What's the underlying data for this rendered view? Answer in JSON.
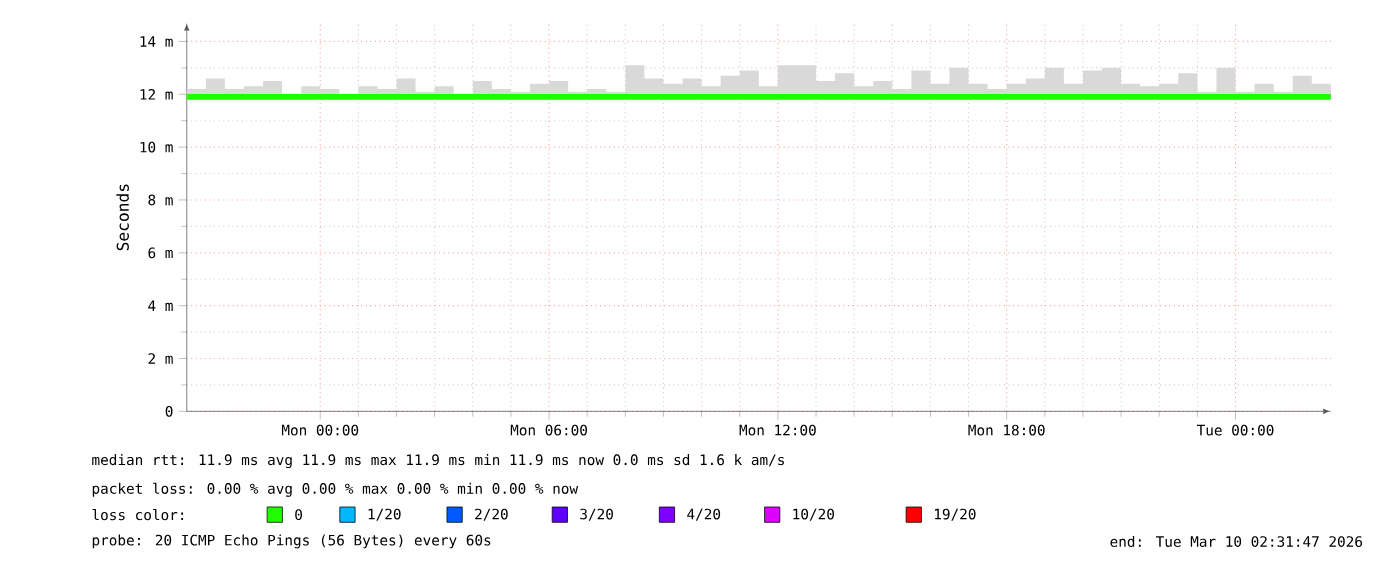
{
  "chart_data": {
    "type": "line",
    "ylabel": "Seconds",
    "xlim": [
      "2026-03-08T20:30",
      "2026-03-10T02:30"
    ],
    "ylim": [
      0,
      14.7
    ],
    "xticks": [
      {
        "value": "2026-03-09T00:00",
        "label": "Mon 00:00"
      },
      {
        "value": "2026-03-09T06:00",
        "label": "Mon 06:00"
      },
      {
        "value": "2026-03-09T12:00",
        "label": "Mon 12:00"
      },
      {
        "value": "2026-03-09T18:00",
        "label": "Mon 18:00"
      },
      {
        "value": "2026-03-10T00:00",
        "label": "Tue 00:00"
      }
    ],
    "yticks": [
      0,
      {
        "value": 2,
        "label": "2 m"
      },
      {
        "value": 4,
        "label": "4 m"
      },
      {
        "value": 6,
        "label": "6 m"
      },
      {
        "value": 8,
        "label": "8 m"
      },
      {
        "value": 10,
        "label": "10 m"
      },
      {
        "value": 12,
        "label": "12 m"
      },
      {
        "value": 14,
        "label": "14 m"
      }
    ],
    "grid": true,
    "legend": "bottom",
    "legend_title": "loss color:",
    "x": [
      "2026-03-08T20:30",
      "2026-03-08T21:00",
      "2026-03-08T21:30",
      "2026-03-08T22:00",
      "2026-03-08T22:30",
      "2026-03-08T23:00",
      "2026-03-08T23:30",
      "2026-03-09T00:00",
      "2026-03-09T00:30",
      "2026-03-09T01:00",
      "2026-03-09T01:30",
      "2026-03-09T02:00",
      "2026-03-09T02:30",
      "2026-03-09T03:00",
      "2026-03-09T03:30",
      "2026-03-09T04:00",
      "2026-03-09T04:30",
      "2026-03-09T05:00",
      "2026-03-09T05:30",
      "2026-03-09T06:00",
      "2026-03-09T06:30",
      "2026-03-09T07:00",
      "2026-03-09T07:30",
      "2026-03-09T08:00",
      "2026-03-09T08:30",
      "2026-03-09T09:00",
      "2026-03-09T09:30",
      "2026-03-09T10:00",
      "2026-03-09T10:30",
      "2026-03-09T11:00",
      "2026-03-09T11:30",
      "2026-03-09T12:00",
      "2026-03-09T12:30",
      "2026-03-09T13:00",
      "2026-03-09T13:30",
      "2026-03-09T14:00",
      "2026-03-09T14:30",
      "2026-03-09T15:00",
      "2026-03-09T15:30",
      "2026-03-09T16:00",
      "2026-03-09T16:30",
      "2026-03-09T17:00",
      "2026-03-09T17:30",
      "2026-03-09T18:00",
      "2026-03-09T18:30",
      "2026-03-09T19:00",
      "2026-03-09T19:30",
      "2026-03-09T20:00",
      "2026-03-09T20:30",
      "2026-03-09T21:00",
      "2026-03-09T21:30",
      "2026-03-09T22:00",
      "2026-03-09T22:30",
      "2026-03-09T23:00",
      "2026-03-09T23:30",
      "2026-03-10T00:00",
      "2026-03-10T00:30",
      "2026-03-10T01:00",
      "2026-03-10T01:30",
      "2026-03-10T02:00",
      "2026-03-10T02:30"
    ],
    "series": [
      {
        "name": "0",
        "color": "#20ff00",
        "values": [
          11.9,
          11.9,
          11.9,
          11.9,
          11.9,
          11.9,
          11.9,
          11.9,
          11.9,
          11.9,
          11.9,
          11.9,
          11.9,
          11.9,
          11.9,
          11.9,
          11.9,
          11.9,
          11.9,
          11.9,
          11.9,
          11.9,
          11.9,
          11.9,
          11.9,
          11.9,
          11.9,
          11.9,
          11.9,
          11.9,
          11.9,
          11.9,
          11.9,
          11.9,
          11.9,
          11.9,
          11.9,
          11.9,
          11.9,
          11.9,
          11.9,
          11.9,
          11.9,
          11.9,
          11.9,
          11.9,
          11.9,
          11.9,
          11.9,
          11.9,
          11.9,
          11.9,
          11.9,
          11.9,
          11.9,
          11.9,
          11.9,
          11.9,
          11.9,
          11.9,
          11.9
        ],
        "lower": [
          11.8,
          11.8,
          11.8,
          11.8,
          11.8,
          11.8,
          11.8,
          11.8,
          11.8,
          11.8,
          11.8,
          11.8,
          11.8,
          11.8,
          11.8,
          11.8,
          11.8,
          11.8,
          11.8,
          11.8,
          11.8,
          11.8,
          11.8,
          11.8,
          11.8,
          11.8,
          11.8,
          11.8,
          11.8,
          11.8,
          11.8,
          11.8,
          11.8,
          11.8,
          11.8,
          11.8,
          11.8,
          11.8,
          11.8,
          11.8,
          11.8,
          11.8,
          11.8,
          11.8,
          11.8,
          11.8,
          11.8,
          11.8,
          11.8,
          11.8,
          11.8,
          11.8,
          11.8,
          11.8,
          11.8,
          11.8,
          11.8,
          11.8,
          11.8,
          11.8,
          11.8
        ],
        "upper": [
          12.2,
          12.6,
          12.2,
          12.3,
          12.5,
          12.0,
          12.3,
          12.2,
          12.0,
          12.3,
          12.2,
          12.6,
          12.1,
          12.3,
          12.0,
          12.5,
          12.2,
          12.1,
          12.4,
          12.5,
          12.1,
          12.2,
          12.1,
          13.1,
          12.6,
          12.4,
          12.6,
          12.3,
          12.7,
          12.9,
          12.3,
          13.1,
          13.1,
          12.5,
          12.8,
          12.3,
          12.5,
          12.2,
          12.9,
          12.4,
          13.0,
          12.4,
          12.2,
          12.4,
          12.6,
          13.0,
          12.4,
          12.9,
          13.0,
          12.4,
          12.3,
          12.4,
          12.8,
          12.1,
          13.0,
          12.1,
          12.4,
          12.1,
          12.7,
          12.4,
          12.4
        ]
      },
      {
        "name": "1/20",
        "color": "#00b8ff",
        "values": [
          null,
          null,
          null,
          null,
          null,
          null,
          null,
          null,
          null,
          null,
          null,
          null,
          null,
          null,
          null,
          null,
          null,
          null,
          null,
          null,
          null,
          null,
          null,
          null,
          null,
          null,
          null,
          null,
          null,
          null,
          null,
          null,
          null,
          null,
          null,
          null,
          null,
          null,
          null,
          null,
          null,
          null,
          null,
          null,
          null,
          null,
          null,
          null,
          null,
          null,
          null,
          null,
          null,
          null,
          null,
          null,
          null,
          null,
          null,
          null,
          null
        ]
      },
      {
        "name": "2/20",
        "color": "#0059ff",
        "values": [
          null,
          null,
          null,
          null,
          null,
          null,
          null,
          null,
          null,
          null,
          null,
          null,
          null,
          null,
          null,
          null,
          null,
          null,
          null,
          null,
          null,
          null,
          null,
          null,
          null,
          null,
          null,
          null,
          null,
          null,
          null,
          null,
          null,
          null,
          null,
          null,
          null,
          null,
          null,
          null,
          null,
          null,
          null,
          null,
          null,
          null,
          null,
          null,
          null,
          null,
          null,
          null,
          null,
          null,
          null,
          null,
          null,
          null,
          null,
          null,
          null
        ]
      },
      {
        "name": "3/20",
        "color": "#5e00ff",
        "values": [
          null,
          null,
          null,
          null,
          null,
          null,
          null,
          null,
          null,
          null,
          null,
          null,
          null,
          null,
          null,
          null,
          null,
          null,
          null,
          null,
          null,
          null,
          null,
          null,
          null,
          null,
          null,
          null,
          null,
          null,
          null,
          null,
          null,
          null,
          null,
          null,
          null,
          null,
          null,
          null,
          null,
          null,
          null,
          null,
          null,
          null,
          null,
          null,
          null,
          null,
          null,
          null,
          null,
          null,
          null,
          null,
          null,
          null,
          null,
          null,
          null
        ]
      },
      {
        "name": "4/20",
        "color": "#7e00ff",
        "values": [
          null,
          null,
          null,
          null,
          null,
          null,
          null,
          null,
          null,
          null,
          null,
          null,
          null,
          null,
          null,
          null,
          null,
          null,
          null,
          null,
          null,
          null,
          null,
          null,
          null,
          null,
          null,
          null,
          null,
          null,
          null,
          null,
          null,
          null,
          null,
          null,
          null,
          null,
          null,
          null,
          null,
          null,
          null,
          null,
          null,
          null,
          null,
          null,
          null,
          null,
          null,
          null,
          null,
          null,
          null,
          null,
          null,
          null,
          null,
          null,
          null
        ]
      },
      {
        "name": "10/20",
        "color": "#dd00ff",
        "values": [
          null,
          null,
          null,
          null,
          null,
          null,
          null,
          null,
          null,
          null,
          null,
          null,
          null,
          null,
          null,
          null,
          null,
          null,
          null,
          null,
          null,
          null,
          null,
          null,
          null,
          null,
          null,
          null,
          null,
          null,
          null,
          null,
          null,
          null,
          null,
          null,
          null,
          null,
          null,
          null,
          null,
          null,
          null,
          null,
          null,
          null,
          null,
          null,
          null,
          null,
          null,
          null,
          null,
          null,
          null,
          null,
          null,
          null,
          null,
          null,
          null
        ]
      },
      {
        "name": "19/20",
        "color": "#ff0000",
        "values": [
          null,
          null,
          null,
          null,
          null,
          null,
          null,
          null,
          null,
          null,
          null,
          null,
          null,
          null,
          null,
          null,
          null,
          null,
          null,
          null,
          null,
          null,
          null,
          null,
          null,
          null,
          null,
          null,
          null,
          null,
          null,
          null,
          null,
          null,
          null,
          null,
          null,
          null,
          null,
          null,
          null,
          null,
          null,
          null,
          null,
          null,
          null,
          null,
          null,
          null,
          null,
          null,
          null,
          null,
          null,
          null,
          null,
          null,
          null,
          null,
          null
        ]
      }
    ],
    "annotations": [
      "median rtt:  11.9 ms avg  11.9 ms max  11.9 ms min  11.9 ms now  0.0 ms sd  1.6 k am/s",
      "packet loss: 0.00 % avg  0.00 % max  0.00 % min  0.00 % now",
      "probe:       20 ICMP Echo Pings (56 Bytes) every 60s",
      "end: Tue Mar 10 02:31:47 2026"
    ]
  }
}
